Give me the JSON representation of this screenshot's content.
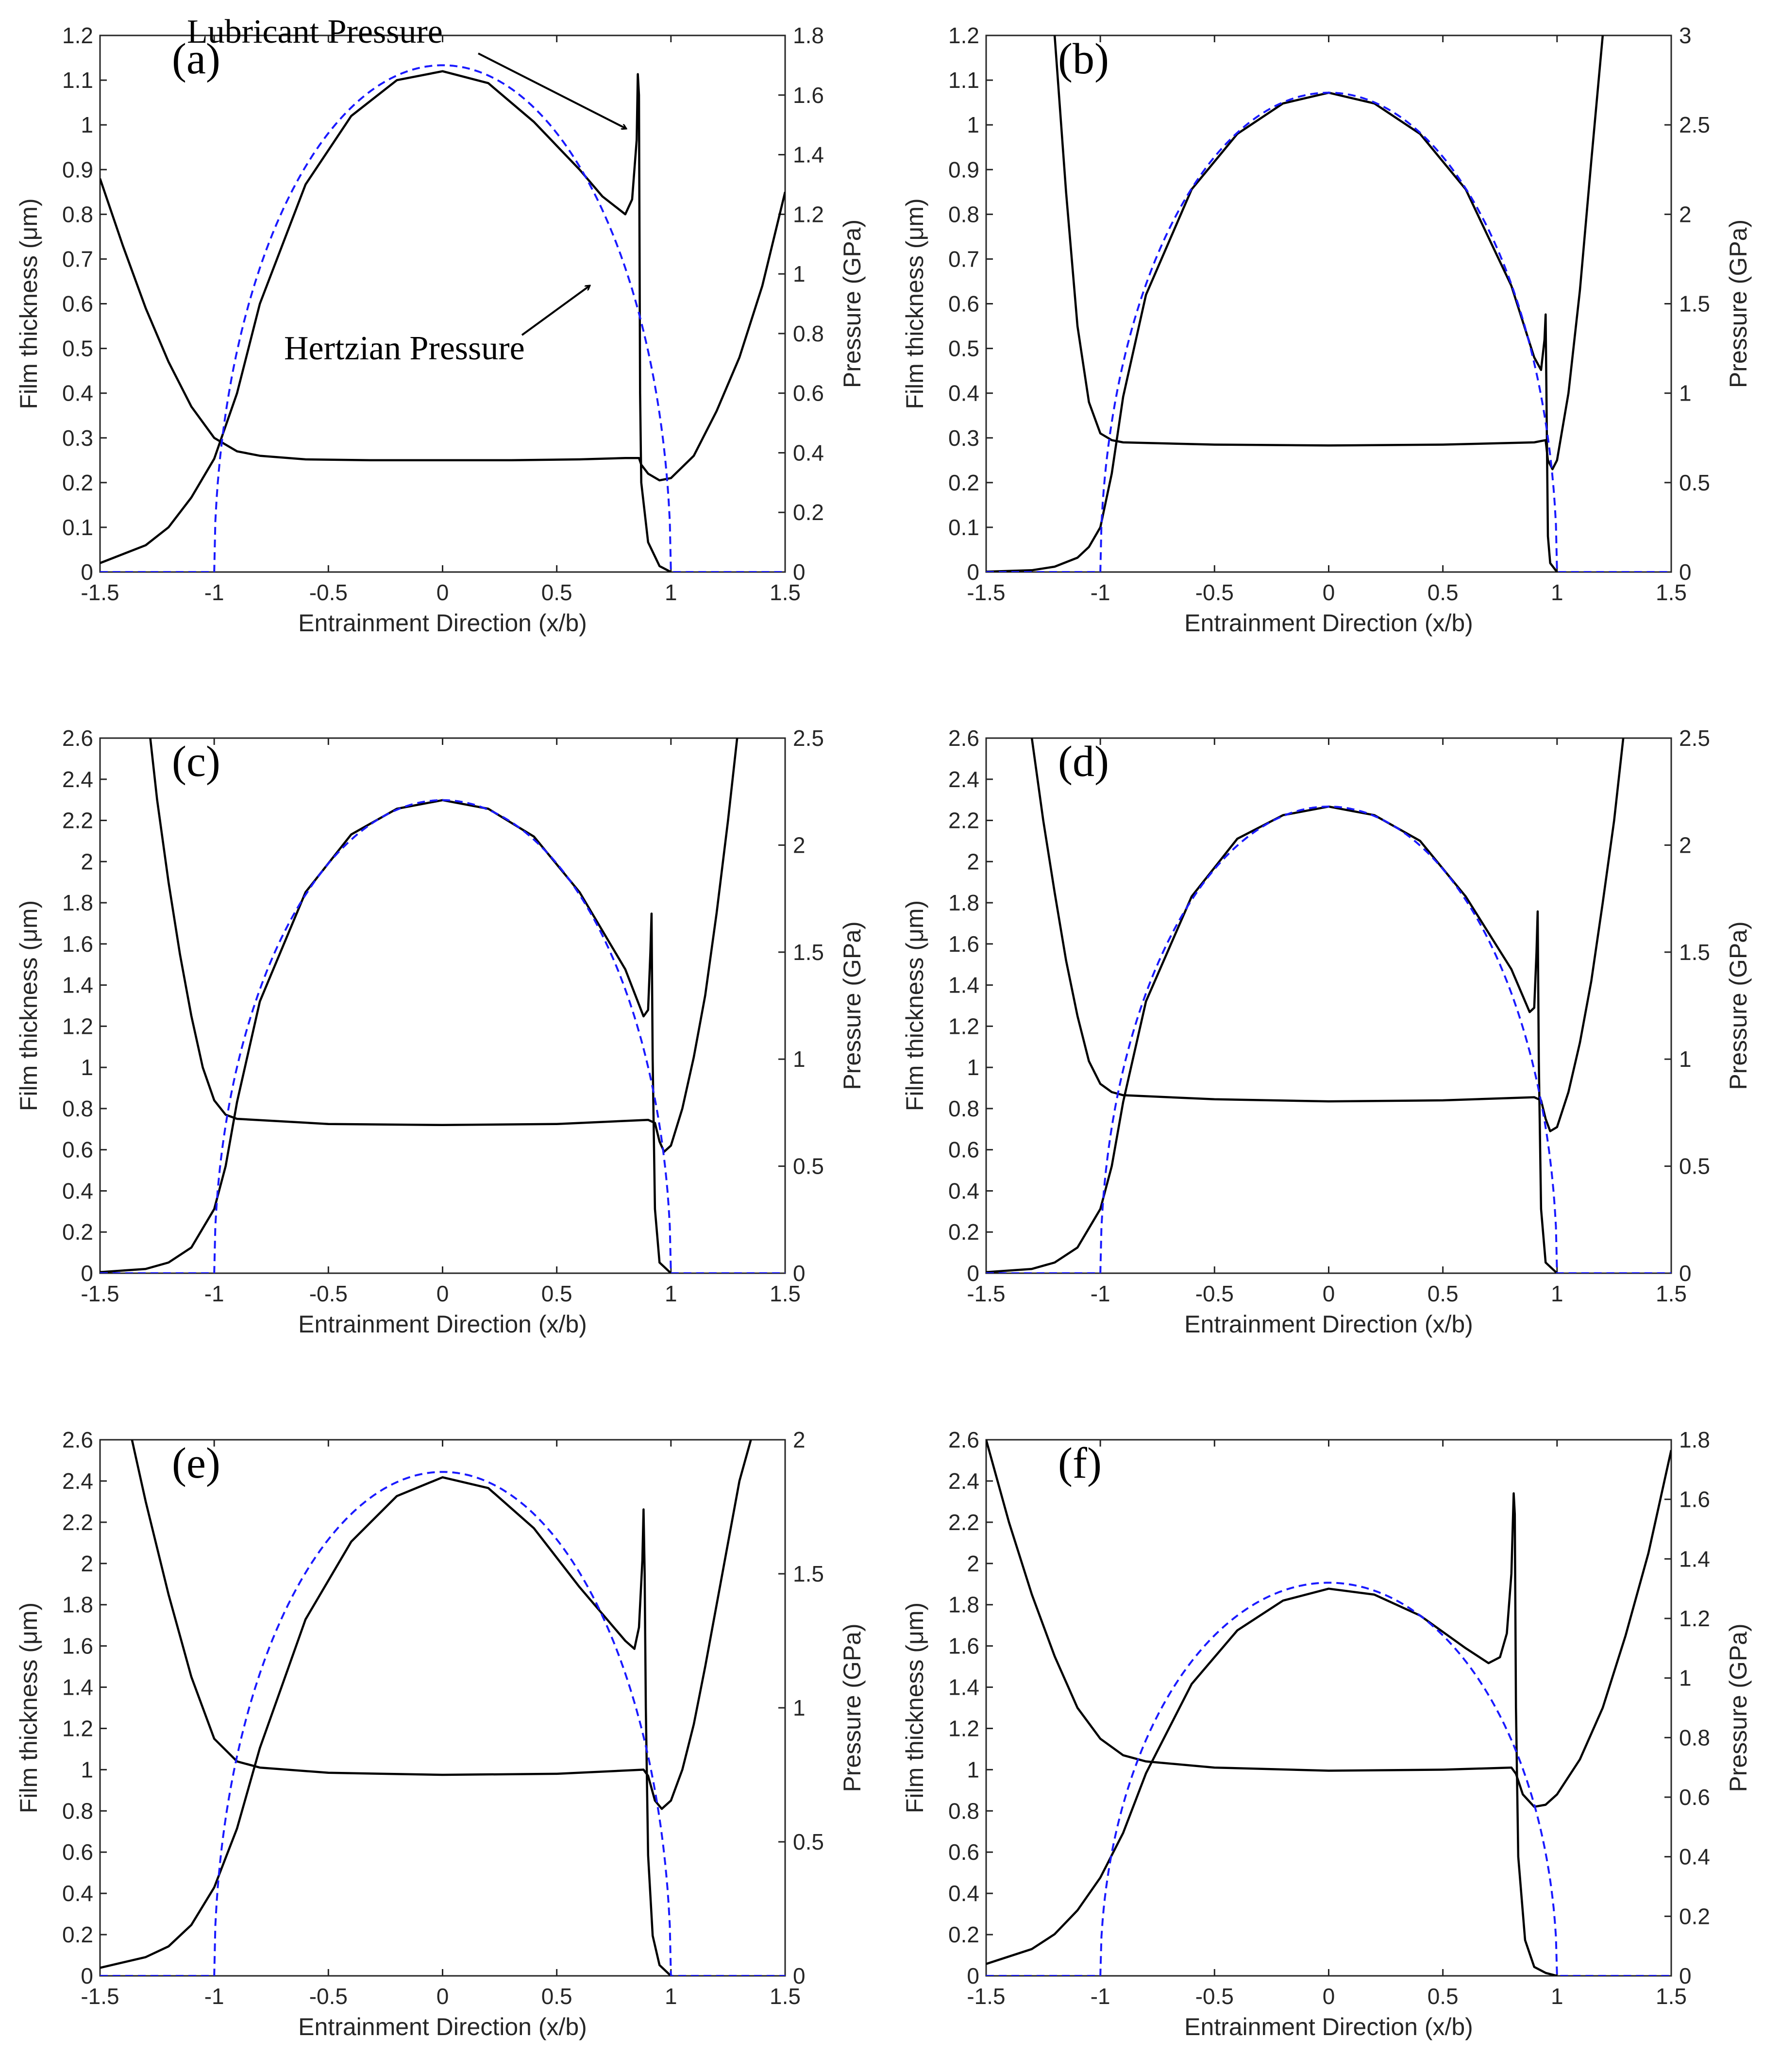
{
  "figure": {
    "annotations": {
      "lubricant": "Lubricant Pressure",
      "hertzian": "Hertzian Pressure"
    }
  },
  "chart_data": [
    {
      "type": "line",
      "panel_label": "(a)",
      "xlabel": "Entrainment Direction (x/b)",
      "ylabel_left": "Film thickness (μm)",
      "ylabel_right": "Pressure (GPa)",
      "xlim": [
        -1.5,
        1.5
      ],
      "xticks": [
        -1.5,
        -1,
        -0.5,
        0,
        0.5,
        1,
        1.5
      ],
      "ylim_left": [
        0,
        1.2
      ],
      "yticks_left": [
        0,
        0.1,
        0.2,
        0.3,
        0.4,
        0.5,
        0.6,
        0.7,
        0.8,
        0.9,
        1,
        1.1,
        1.2
      ],
      "ylim_right": [
        0,
        1.8
      ],
      "yticks_right": [
        0,
        0.2,
        0.4,
        0.6,
        0.8,
        1,
        1.2,
        1.4,
        1.6,
        1.8
      ],
      "series": [
        {
          "name": "Film thickness",
          "axis": "left",
          "color": "#000000",
          "style": "solid",
          "x": [
            -1.5,
            -1.4,
            -1.3,
            -1.2,
            -1.1,
            -1.0,
            -0.9,
            -0.8,
            -0.6,
            -0.3,
            0,
            0.3,
            0.6,
            0.8,
            0.86,
            0.87,
            0.9,
            0.95,
            1.0,
            1.1,
            1.2,
            1.3,
            1.4,
            1.5
          ],
          "y": [
            0.88,
            0.73,
            0.59,
            0.47,
            0.37,
            0.3,
            0.27,
            0.26,
            0.252,
            0.25,
            0.25,
            0.25,
            0.252,
            0.255,
            0.255,
            0.24,
            0.22,
            0.205,
            0.21,
            0.26,
            0.36,
            0.48,
            0.64,
            0.85
          ]
        },
        {
          "name": "Lubricant Pressure",
          "axis": "right",
          "color": "#000000",
          "style": "solid",
          "x": [
            -1.5,
            -1.3,
            -1.2,
            -1.1,
            -1.0,
            -0.9,
            -0.8,
            -0.6,
            -0.4,
            -0.2,
            0,
            0.2,
            0.4,
            0.6,
            0.7,
            0.8,
            0.83,
            0.85,
            0.855,
            0.86,
            0.865,
            0.87,
            0.9,
            0.95,
            1.0
          ],
          "y": [
            0.03,
            0.09,
            0.15,
            0.25,
            0.38,
            0.6,
            0.9,
            1.3,
            1.53,
            1.65,
            1.68,
            1.64,
            1.51,
            1.35,
            1.26,
            1.2,
            1.25,
            1.45,
            1.67,
            1.6,
            0.6,
            0.3,
            0.1,
            0.02,
            0
          ]
        },
        {
          "name": "Hertzian Pressure",
          "axis": "right",
          "color": "#1a1aff",
          "style": "dashed",
          "formula": "hertz",
          "pmax": 1.7
        }
      ]
    },
    {
      "type": "line",
      "panel_label": "(b)",
      "xlabel": "Entrainment Direction (x/b)",
      "ylabel_left": "Film thickness (μm)",
      "ylabel_right": "Pressure (GPa)",
      "xlim": [
        -1.5,
        1.5
      ],
      "xticks": [
        -1.5,
        -1,
        -0.5,
        0,
        0.5,
        1,
        1.5
      ],
      "ylim_left": [
        0,
        1.2
      ],
      "yticks_left": [
        0,
        0.1,
        0.2,
        0.3,
        0.4,
        0.5,
        0.6,
        0.7,
        0.8,
        0.9,
        1,
        1.1,
        1.2
      ],
      "ylim_right": [
        0,
        3
      ],
      "yticks_right": [
        0,
        0.5,
        1,
        1.5,
        2,
        2.5,
        3
      ],
      "series": [
        {
          "name": "Film thickness",
          "axis": "left",
          "color": "#000000",
          "style": "solid",
          "x": [
            -1.2,
            -1.15,
            -1.1,
            -1.05,
            -1.0,
            -0.95,
            -0.9,
            -0.5,
            0,
            0.5,
            0.9,
            0.95,
            0.96,
            0.98,
            1.0,
            1.05,
            1.1,
            1.15,
            1.2
          ],
          "y": [
            1.2,
            0.85,
            0.55,
            0.38,
            0.31,
            0.295,
            0.29,
            0.285,
            0.283,
            0.285,
            0.29,
            0.295,
            0.25,
            0.23,
            0.25,
            0.4,
            0.63,
            0.92,
            1.2
          ]
        },
        {
          "name": "Lubricant Pressure",
          "axis": "right",
          "color": "#000000",
          "style": "solid",
          "x": [
            -1.5,
            -1.3,
            -1.2,
            -1.1,
            -1.05,
            -1.0,
            -0.95,
            -0.9,
            -0.8,
            -0.6,
            -0.4,
            -0.2,
            0,
            0.2,
            0.4,
            0.6,
            0.8,
            0.9,
            0.93,
            0.945,
            0.95,
            0.955,
            0.96,
            0.97,
            1.0
          ],
          "y": [
            0.002,
            0.01,
            0.03,
            0.08,
            0.14,
            0.25,
            0.55,
            0.98,
            1.55,
            2.14,
            2.45,
            2.62,
            2.68,
            2.62,
            2.45,
            2.14,
            1.6,
            1.2,
            1.13,
            1.3,
            1.44,
            0.8,
            0.2,
            0.05,
            0
          ]
        },
        {
          "name": "Hertzian Pressure",
          "axis": "right",
          "color": "#1a1aff",
          "style": "dashed",
          "formula": "hertz",
          "pmax": 2.68
        }
      ]
    },
    {
      "type": "line",
      "panel_label": "(c)",
      "xlabel": "Entrainment Direction (x/b)",
      "ylabel_left": "Film thickness (μm)",
      "ylabel_right": "Pressure (GPa)",
      "xlim": [
        -1.5,
        1.5
      ],
      "xticks": [
        -1.5,
        -1,
        -0.5,
        0,
        0.5,
        1,
        1.5
      ],
      "ylim_left": [
        0,
        2.6
      ],
      "yticks_left": [
        0,
        0.2,
        0.4,
        0.6,
        0.8,
        1,
        1.2,
        1.4,
        1.6,
        1.8,
        2,
        2.2,
        2.4,
        2.6
      ],
      "ylim_right": [
        0,
        2.5
      ],
      "yticks_right": [
        0,
        0.5,
        1,
        1.5,
        2,
        2.5
      ],
      "series": [
        {
          "name": "Film thickness",
          "axis": "left",
          "color": "#000000",
          "style": "solid",
          "x": [
            -1.28,
            -1.25,
            -1.2,
            -1.15,
            -1.1,
            -1.05,
            -1.0,
            -0.95,
            -0.9,
            -0.5,
            0,
            0.5,
            0.9,
            0.93,
            0.95,
            0.97,
            1.0,
            1.05,
            1.1,
            1.15,
            1.2,
            1.25,
            1.29
          ],
          "y": [
            2.6,
            2.3,
            1.9,
            1.55,
            1.25,
            1.0,
            0.84,
            0.77,
            0.75,
            0.725,
            0.72,
            0.725,
            0.745,
            0.73,
            0.64,
            0.59,
            0.62,
            0.8,
            1.05,
            1.35,
            1.75,
            2.2,
            2.6
          ]
        },
        {
          "name": "Lubricant Pressure",
          "axis": "right",
          "color": "#000000",
          "style": "solid",
          "x": [
            -1.5,
            -1.3,
            -1.2,
            -1.1,
            -1.0,
            -0.95,
            -0.9,
            -0.8,
            -0.6,
            -0.4,
            -0.2,
            0,
            0.2,
            0.4,
            0.6,
            0.8,
            0.88,
            0.9,
            0.91,
            0.915,
            0.92,
            0.93,
            0.95,
            1.0
          ],
          "y": [
            0.005,
            0.02,
            0.05,
            0.12,
            0.3,
            0.5,
            0.8,
            1.27,
            1.78,
            2.05,
            2.17,
            2.21,
            2.17,
            2.04,
            1.78,
            1.42,
            1.2,
            1.23,
            1.5,
            1.68,
            1.0,
            0.3,
            0.05,
            0
          ]
        },
        {
          "name": "Hertzian Pressure",
          "axis": "right",
          "color": "#1a1aff",
          "style": "dashed",
          "formula": "hertz",
          "pmax": 2.21
        }
      ]
    },
    {
      "type": "line",
      "panel_label": "(d)",
      "xlabel": "Entrainment Direction (x/b)",
      "ylabel_left": "Film thickness (μm)",
      "ylabel_right": "Pressure (GPa)",
      "xlim": [
        -1.5,
        1.5
      ],
      "xticks": [
        -1.5,
        -1,
        -0.5,
        0,
        0.5,
        1,
        1.5
      ],
      "ylim_left": [
        0,
        2.6
      ],
      "yticks_left": [
        0,
        0.2,
        0.4,
        0.6,
        0.8,
        1,
        1.2,
        1.4,
        1.6,
        1.8,
        2,
        2.2,
        2.4,
        2.6
      ],
      "ylim_right": [
        0,
        2.5
      ],
      "yticks_right": [
        0,
        0.5,
        1,
        1.5,
        2,
        2.5
      ],
      "series": [
        {
          "name": "Film thickness",
          "axis": "left",
          "color": "#000000",
          "style": "solid",
          "x": [
            -1.3,
            -1.25,
            -1.2,
            -1.15,
            -1.1,
            -1.05,
            -1.0,
            -0.95,
            -0.9,
            -0.5,
            0,
            0.5,
            0.9,
            0.93,
            0.95,
            0.97,
            1.0,
            1.05,
            1.1,
            1.15,
            1.2,
            1.25,
            1.29
          ],
          "y": [
            2.6,
            2.2,
            1.85,
            1.52,
            1.25,
            1.03,
            0.92,
            0.88,
            0.865,
            0.845,
            0.835,
            0.84,
            0.855,
            0.84,
            0.75,
            0.69,
            0.71,
            0.88,
            1.12,
            1.42,
            1.8,
            2.2,
            2.6
          ]
        },
        {
          "name": "Lubricant Pressure",
          "axis": "right",
          "color": "#000000",
          "style": "solid",
          "x": [
            -1.5,
            -1.3,
            -1.2,
            -1.1,
            -1.0,
            -0.95,
            -0.9,
            -0.8,
            -0.6,
            -0.4,
            -0.2,
            0,
            0.2,
            0.4,
            0.6,
            0.8,
            0.88,
            0.9,
            0.91,
            0.915,
            0.92,
            0.93,
            0.95,
            1.0
          ],
          "y": [
            0.005,
            0.02,
            0.05,
            0.12,
            0.3,
            0.5,
            0.8,
            1.27,
            1.76,
            2.03,
            2.14,
            2.18,
            2.14,
            2.02,
            1.76,
            1.42,
            1.22,
            1.24,
            1.5,
            1.69,
            1.0,
            0.3,
            0.05,
            0
          ]
        },
        {
          "name": "Hertzian Pressure",
          "axis": "right",
          "color": "#1a1aff",
          "style": "dashed",
          "formula": "hertz",
          "pmax": 2.18
        }
      ]
    },
    {
      "type": "line",
      "panel_label": "(e)",
      "xlabel": "Entrainment Direction (x/b)",
      "ylabel_left": "Film thickness (μm)",
      "ylabel_right": "Pressure (GPa)",
      "xlim": [
        -1.5,
        1.5
      ],
      "xticks": [
        -1.5,
        -1,
        -0.5,
        0,
        0.5,
        1,
        1.5
      ],
      "ylim_left": [
        0,
        2.6
      ],
      "yticks_left": [
        0,
        0.2,
        0.4,
        0.6,
        0.8,
        1,
        1.2,
        1.4,
        1.6,
        1.8,
        2,
        2.2,
        2.4,
        2.6
      ],
      "ylim_right": [
        0,
        2
      ],
      "yticks_right": [
        0,
        0.5,
        1,
        1.5,
        2
      ],
      "series": [
        {
          "name": "Film thickness",
          "axis": "left",
          "color": "#000000",
          "style": "solid",
          "x": [
            -1.36,
            -1.3,
            -1.2,
            -1.1,
            -1.0,
            -0.9,
            -0.8,
            -0.5,
            0,
            0.5,
            0.88,
            0.9,
            0.93,
            0.96,
            1.0,
            1.05,
            1.1,
            1.15,
            1.2,
            1.25,
            1.3,
            1.35
          ],
          "y": [
            2.6,
            2.3,
            1.85,
            1.45,
            1.15,
            1.04,
            1.01,
            0.985,
            0.975,
            0.98,
            1.0,
            0.97,
            0.85,
            0.81,
            0.85,
            1.0,
            1.22,
            1.5,
            1.8,
            2.1,
            2.4,
            2.6
          ]
        },
        {
          "name": "Lubricant Pressure",
          "axis": "right",
          "color": "#000000",
          "style": "solid",
          "x": [
            -1.5,
            -1.3,
            -1.2,
            -1.1,
            -1.0,
            -0.9,
            -0.8,
            -0.6,
            -0.4,
            -0.2,
            0,
            0.2,
            0.4,
            0.6,
            0.8,
            0.84,
            0.86,
            0.875,
            0.88,
            0.885,
            0.89,
            0.9,
            0.92,
            0.95,
            1.0
          ],
          "y": [
            0.03,
            0.07,
            0.11,
            0.19,
            0.33,
            0.55,
            0.85,
            1.33,
            1.62,
            1.79,
            1.86,
            1.82,
            1.67,
            1.45,
            1.25,
            1.22,
            1.3,
            1.55,
            1.74,
            1.5,
            1.0,
            0.45,
            0.15,
            0.04,
            0
          ]
        },
        {
          "name": "Hertzian Pressure",
          "axis": "right",
          "color": "#1a1aff",
          "style": "dashed",
          "formula": "hertz",
          "pmax": 1.88
        }
      ]
    },
    {
      "type": "line",
      "panel_label": "(f)",
      "xlabel": "Entrainment Direction (x/b)",
      "ylabel_left": "Film thickness (μm)",
      "ylabel_right": "Pressure (GPa)",
      "xlim": [
        -1.5,
        1.5
      ],
      "xticks": [
        -1.5,
        -1,
        -0.5,
        0,
        0.5,
        1,
        1.5
      ],
      "ylim_left": [
        0,
        2.6
      ],
      "yticks_left": [
        0,
        0.2,
        0.4,
        0.6,
        0.8,
        1,
        1.2,
        1.4,
        1.6,
        1.8,
        2,
        2.2,
        2.4,
        2.6
      ],
      "ylim_right": [
        0,
        1.8
      ],
      "yticks_right": [
        0,
        0.2,
        0.4,
        0.6,
        0.8,
        1,
        1.2,
        1.4,
        1.6,
        1.8
      ],
      "series": [
        {
          "name": "Film thickness",
          "axis": "left",
          "color": "#000000",
          "style": "solid",
          "x": [
            -1.5,
            -1.4,
            -1.3,
            -1.2,
            -1.1,
            -1.0,
            -0.9,
            -0.8,
            -0.5,
            0,
            0.5,
            0.8,
            0.82,
            0.85,
            0.9,
            0.95,
            1.0,
            1.1,
            1.2,
            1.3,
            1.4,
            1.5
          ],
          "y": [
            2.6,
            2.2,
            1.85,
            1.55,
            1.3,
            1.15,
            1.07,
            1.04,
            1.01,
            0.995,
            1.0,
            1.01,
            0.98,
            0.88,
            0.82,
            0.83,
            0.88,
            1.05,
            1.3,
            1.65,
            2.05,
            2.55
          ]
        },
        {
          "name": "Lubricant Pressure",
          "axis": "right",
          "color": "#000000",
          "style": "solid",
          "x": [
            -1.5,
            -1.3,
            -1.2,
            -1.1,
            -1.0,
            -0.9,
            -0.8,
            -0.6,
            -0.4,
            -0.2,
            0,
            0.2,
            0.4,
            0.6,
            0.7,
            0.75,
            0.78,
            0.8,
            0.81,
            0.815,
            0.82,
            0.83,
            0.86,
            0.9,
            0.95,
            1.0
          ],
          "y": [
            0.04,
            0.09,
            0.14,
            0.22,
            0.33,
            0.48,
            0.68,
            0.98,
            1.16,
            1.26,
            1.3,
            1.28,
            1.21,
            1.1,
            1.05,
            1.07,
            1.15,
            1.35,
            1.62,
            1.55,
            0.9,
            0.4,
            0.12,
            0.03,
            0.01,
            0
          ]
        },
        {
          "name": "Hertzian Pressure",
          "axis": "right",
          "color": "#1a1aff",
          "style": "dashed",
          "formula": "hertz",
          "pmax": 1.32
        }
      ]
    }
  ]
}
